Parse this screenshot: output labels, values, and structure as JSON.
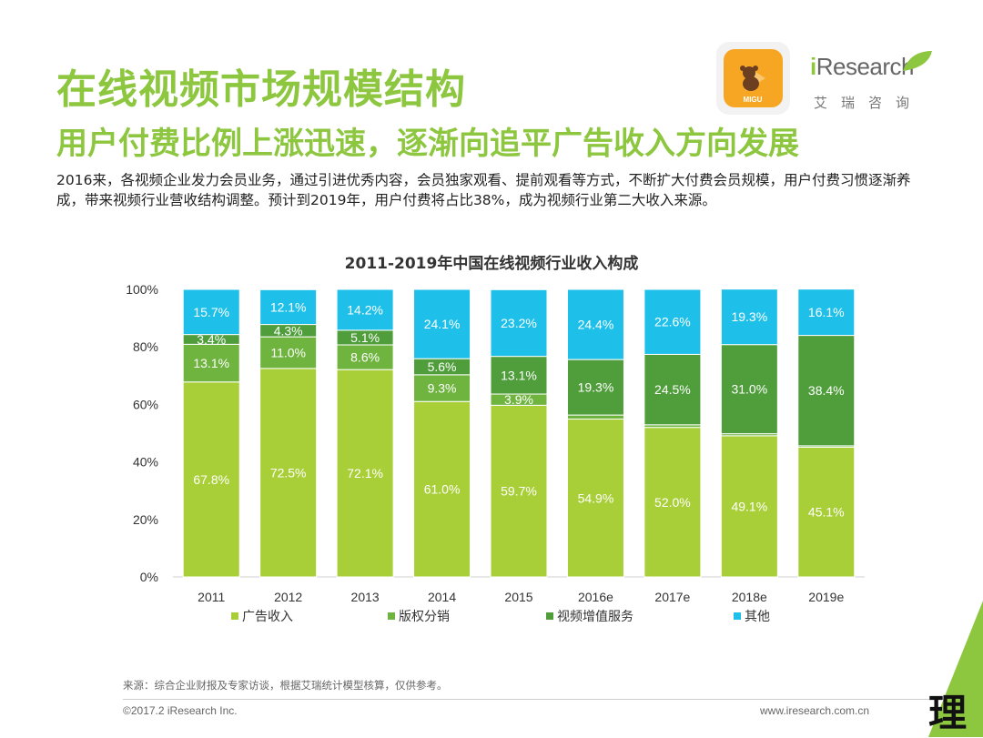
{
  "header": {
    "title": "在线视频市场规模结构",
    "subtitle": "用户付费比例上涨迅速，逐渐向追平广告收入方向发展",
    "description": "2016来，各视频企业发力会员业务，通过引进优秀内容，会员独家观看、提前观看等方式，不断扩大付费会员规模，用户付费习惯逐渐养成，带来视频行业营收结构调整。预计到2019年，用户付费将占比38%，成为视频行业第二大收入来源。"
  },
  "logos": {
    "app_label": "MIGU",
    "brand_prefix": "i",
    "brand_rest": "Research",
    "brand_cn": "艾瑞咨询"
  },
  "colors": {
    "title_green": "#8dc63f",
    "ad": "#a9cf38",
    "copyright_series": "#6fb43f",
    "vas": "#4f9e3b",
    "other": "#1ec0ea"
  },
  "chart_data": {
    "type": "bar",
    "stacked": true,
    "title": "2011-2019年中国在线视频行业收入构成",
    "categories": [
      "2011",
      "2012",
      "2013",
      "2014",
      "2015",
      "2016e",
      "2017e",
      "2018e",
      "2019e"
    ],
    "series": [
      {
        "name": "广告收入",
        "color": "#a9cf38",
        "values": [
          67.8,
          72.5,
          72.1,
          61.0,
          59.7,
          54.9,
          52.0,
          49.1,
          45.1
        ]
      },
      {
        "name": "版权分销",
        "color": "#6fb43f",
        "values": [
          13.1,
          11.0,
          8.6,
          9.3,
          3.9,
          1.4,
          0.9,
          0.7,
          0.5
        ]
      },
      {
        "name": "视频增值服务",
        "color": "#4f9e3b",
        "values": [
          3.4,
          4.3,
          5.1,
          5.6,
          13.1,
          19.3,
          24.5,
          31.0,
          38.4
        ]
      },
      {
        "name": "其他",
        "color": "#1ec0ea",
        "values": [
          15.7,
          12.1,
          14.2,
          24.1,
          23.2,
          24.4,
          22.6,
          19.3,
          16.1
        ]
      }
    ],
    "yticks": [
      "100%",
      "80%",
      "60%",
      "40%",
      "20%",
      "0%"
    ],
    "ylim": [
      0,
      100
    ],
    "xlabel": "",
    "ylabel": ""
  },
  "footer": {
    "source": "来源：综合企业财报及专家访谈，根据艾瑞统计模型核算，仅供参考。",
    "copyright": "©2017.2 iResearch Inc.",
    "website": "www.iresearch.com.cn"
  },
  "watermark": "理"
}
